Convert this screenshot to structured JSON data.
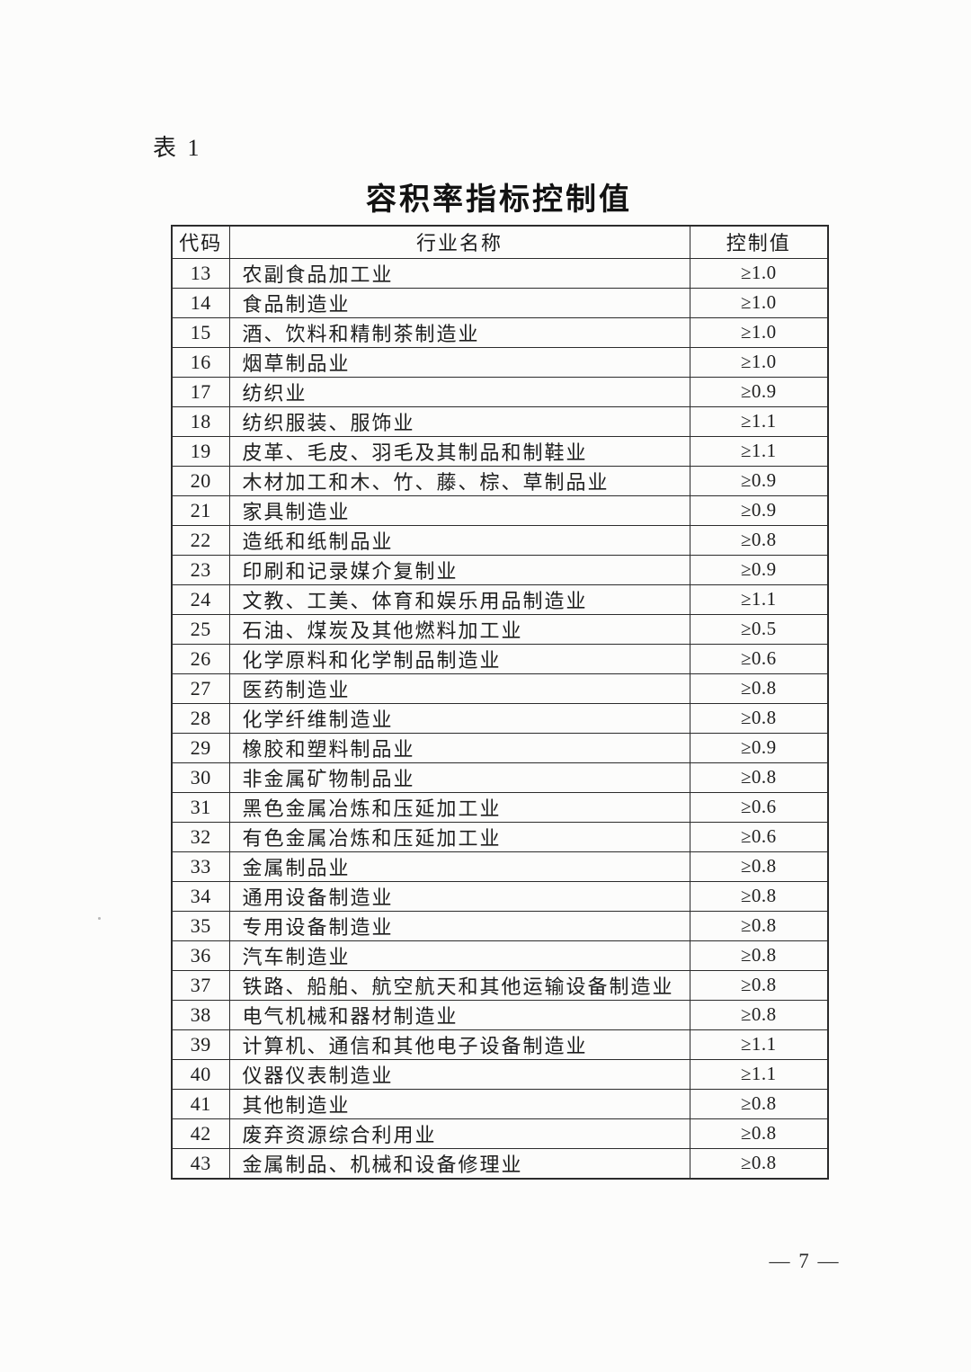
{
  "document": {
    "table_label": "表 1",
    "title": "容积率指标控制值",
    "page_number": "— 7 —"
  },
  "colors": {
    "paper": "#fcfcfb",
    "ink": "#1f1f1f",
    "border": "#2c2c2c"
  },
  "table": {
    "headers": [
      "代码",
      "行业名称",
      "控制值"
    ],
    "rows": [
      {
        "code": "13",
        "industry": "农副食品加工业",
        "value": "≥1.0"
      },
      {
        "code": "14",
        "industry": "食品制造业",
        "value": "≥1.0"
      },
      {
        "code": "15",
        "industry": "酒、饮料和精制茶制造业",
        "value": "≥1.0"
      },
      {
        "code": "16",
        "industry": "烟草制品业",
        "value": "≥1.0"
      },
      {
        "code": "17",
        "industry": "纺织业",
        "value": "≥0.9"
      },
      {
        "code": "18",
        "industry": "纺织服装、服饰业",
        "value": "≥1.1"
      },
      {
        "code": "19",
        "industry": "皮革、毛皮、羽毛及其制品和制鞋业",
        "value": "≥1.1"
      },
      {
        "code": "20",
        "industry": "木材加工和木、竹、藤、棕、草制品业",
        "value": "≥0.9"
      },
      {
        "code": "21",
        "industry": "家具制造业",
        "value": "≥0.9"
      },
      {
        "code": "22",
        "industry": "造纸和纸制品业",
        "value": "≥0.8"
      },
      {
        "code": "23",
        "industry": "印刷和记录媒介复制业",
        "value": "≥0.9"
      },
      {
        "code": "24",
        "industry": "文教、工美、体育和娱乐用品制造业",
        "value": "≥1.1"
      },
      {
        "code": "25",
        "industry": "石油、煤炭及其他燃料加工业",
        "value": "≥0.5"
      },
      {
        "code": "26",
        "industry": "化学原料和化学制品制造业",
        "value": "≥0.6"
      },
      {
        "code": "27",
        "industry": "医药制造业",
        "value": "≥0.8"
      },
      {
        "code": "28",
        "industry": "化学纤维制造业",
        "value": "≥0.8"
      },
      {
        "code": "29",
        "industry": "橡胶和塑料制品业",
        "value": "≥0.9"
      },
      {
        "code": "30",
        "industry": "非金属矿物制品业",
        "value": "≥0.8"
      },
      {
        "code": "31",
        "industry": "黑色金属冶炼和压延加工业",
        "value": "≥0.6"
      },
      {
        "code": "32",
        "industry": "有色金属冶炼和压延加工业",
        "value": "≥0.6"
      },
      {
        "code": "33",
        "industry": "金属制品业",
        "value": "≥0.8"
      },
      {
        "code": "34",
        "industry": "通用设备制造业",
        "value": "≥0.8"
      },
      {
        "code": "35",
        "industry": "专用设备制造业",
        "value": "≥0.8"
      },
      {
        "code": "36",
        "industry": "汽车制造业",
        "value": "≥0.8"
      },
      {
        "code": "37",
        "industry": "铁路、船舶、航空航天和其他运输设备制造业",
        "value": "≥0.8"
      },
      {
        "code": "38",
        "industry": "电气机械和器材制造业",
        "value": "≥0.8"
      },
      {
        "code": "39",
        "industry": "计算机、通信和其他电子设备制造业",
        "value": "≥1.1"
      },
      {
        "code": "40",
        "industry": "仪器仪表制造业",
        "value": "≥1.1"
      },
      {
        "code": "41",
        "industry": "其他制造业",
        "value": "≥0.8"
      },
      {
        "code": "42",
        "industry": "废弃资源综合利用业",
        "value": "≥0.8"
      },
      {
        "code": "43",
        "industry": "金属制品、机械和设备修理业",
        "value": "≥0.8"
      }
    ]
  }
}
